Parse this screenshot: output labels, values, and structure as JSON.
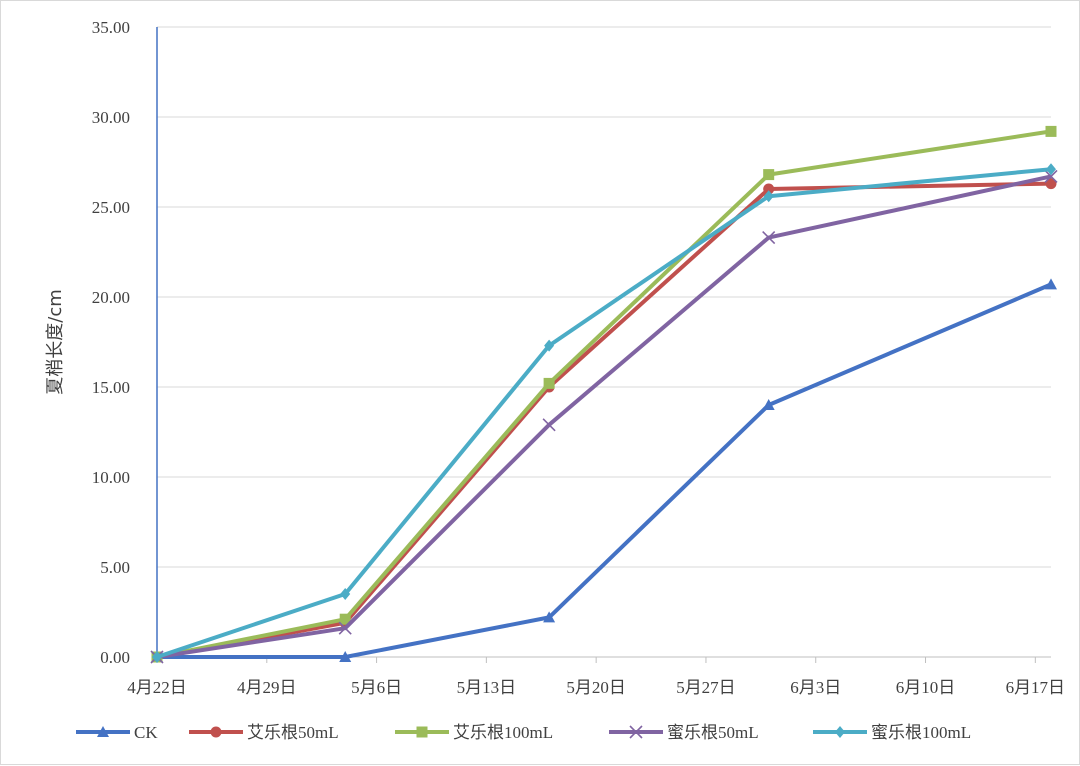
{
  "chart_data": {
    "type": "line",
    "title": "",
    "ylabel": "夏梢长度/cm",
    "xlabel": "",
    "ylim": [
      0,
      35
    ],
    "y_ticks": [
      "0.00",
      "5.00",
      "10.00",
      "15.00",
      "20.00",
      "25.00",
      "30.00",
      "35.00"
    ],
    "x_ticks": [
      "4月22日",
      "4月29日",
      "5月6日",
      "5月13日",
      "5月20日",
      "5月27日",
      "6月3日",
      "6月10日",
      "6月17日"
    ],
    "x_tick_days": [
      0,
      7,
      14,
      21,
      28,
      35,
      42,
      49,
      56
    ],
    "xlim_days": [
      0,
      57
    ],
    "grid": true,
    "legend_position": "bottom",
    "x_days": [
      0,
      12,
      25,
      39,
      57
    ],
    "series": [
      {
        "name": "CK",
        "color": "#4472c4",
        "marker": "triangle",
        "values": [
          0.0,
          0.0,
          2.2,
          14.0,
          20.7
        ]
      },
      {
        "name": "艾乐根50mL",
        "color": "#c0504d",
        "marker": "circle",
        "values": [
          0.0,
          1.9,
          15.0,
          26.0,
          26.3
        ]
      },
      {
        "name": "艾乐根100mL",
        "color": "#9bbb59",
        "marker": "square",
        "values": [
          0.0,
          2.1,
          15.2,
          26.8,
          29.2
        ]
      },
      {
        "name": "蜜乐根50mL",
        "color": "#8064a2",
        "marker": "x",
        "values": [
          0.0,
          1.6,
          12.9,
          23.3,
          26.7
        ]
      },
      {
        "name": "蜜乐根100mL",
        "color": "#4bacc6",
        "marker": "diamond",
        "values": [
          0.0,
          3.5,
          17.3,
          25.6,
          27.1
        ]
      }
    ]
  }
}
